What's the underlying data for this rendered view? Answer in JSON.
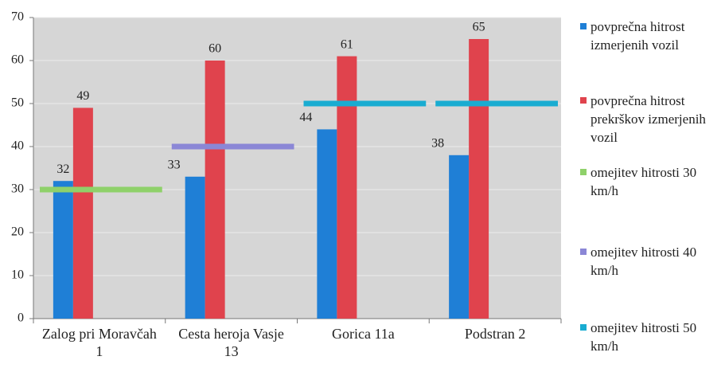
{
  "chart_data": {
    "type": "bar",
    "categories": [
      "Zalog pri Moravčah 1",
      "Cesta heroja Vasje 13",
      "Gorica 11a",
      "Podstran 2"
    ],
    "series": [
      {
        "name": "povprečna hitrost izmerjenih vozil",
        "color": "#1f7fd6",
        "values": [
          32,
          33,
          44,
          38
        ],
        "kind": "bar"
      },
      {
        "name": "povprečna hitrost prekrškov izmerjenih vozil",
        "color": "#e0434d",
        "values": [
          49,
          60,
          61,
          65
        ],
        "kind": "bar"
      },
      {
        "name": "omejitev hitrosti 30 km/h",
        "color": "#8fd16a",
        "values": [
          30,
          null,
          null,
          null
        ],
        "kind": "line"
      },
      {
        "name": "omejitev hitrosti 40 km/h",
        "color": "#8b87d6",
        "values": [
          null,
          40,
          null,
          null
        ],
        "kind": "line"
      },
      {
        "name": "omejitev hitrosti 50 km/h",
        "color": "#19acd1",
        "values": [
          null,
          null,
          50,
          50
        ],
        "kind": "line"
      }
    ],
    "ylim": [
      0,
      70
    ],
    "yticks": [
      0,
      10,
      20,
      30,
      40,
      50,
      60,
      70
    ],
    "grid": true,
    "legend": "right"
  }
}
